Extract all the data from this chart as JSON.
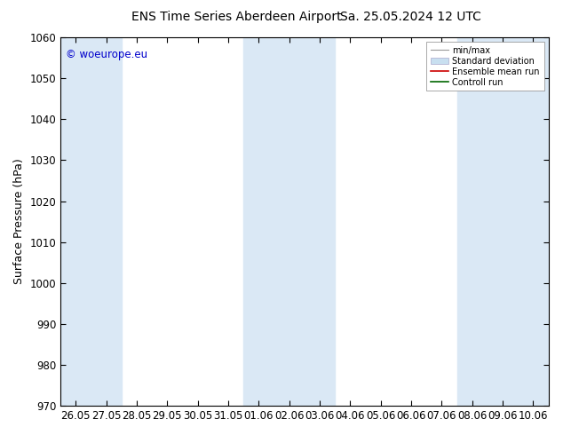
{
  "title": "ENS Time Series Aberdeen Airport",
  "title2": "Sa. 25.05.2024 12 UTC",
  "ylabel": "Surface Pressure (hPa)",
  "ylim": [
    970,
    1060
  ],
  "yticks": [
    970,
    980,
    990,
    1000,
    1010,
    1020,
    1030,
    1040,
    1050,
    1060
  ],
  "xtick_labels": [
    "26.05",
    "27.05",
    "28.05",
    "29.05",
    "30.05",
    "31.05",
    "01.06",
    "02.06",
    "03.06",
    "04.06",
    "05.06",
    "06.06",
    "07.06",
    "08.06",
    "09.06",
    "10.06"
  ],
  "n_ticks": 16,
  "shade_color": "#dae8f5",
  "background_color": "#ffffff",
  "copyright_text": "© woeurope.eu",
  "copyright_color": "#0000cc",
  "legend_items": [
    {
      "label": "min/max",
      "color": "#aaaaaa",
      "type": "minmax"
    },
    {
      "label": "Standard deviation",
      "color": "#c8dff0",
      "type": "fill"
    },
    {
      "label": "Ensemble mean run",
      "color": "#cc0000",
      "type": "line"
    },
    {
      "label": "Controll run",
      "color": "#006600",
      "type": "line"
    }
  ],
  "figsize": [
    6.34,
    4.9
  ],
  "dpi": 100,
  "title_fontsize": 10,
  "axis_fontsize": 9,
  "tick_fontsize": 8.5
}
